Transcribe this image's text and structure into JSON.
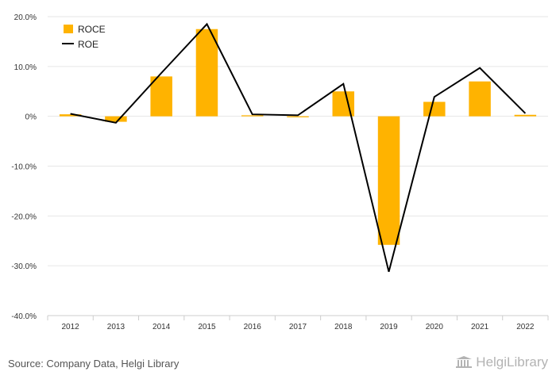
{
  "chart_data": {
    "type": "bar",
    "categories": [
      "2012",
      "2013",
      "2014",
      "2015",
      "2016",
      "2017",
      "2018",
      "2019",
      "2020",
      "2021",
      "2022"
    ],
    "series": [
      {
        "name": "ROCE",
        "kind": "bar",
        "color": "#FFB300",
        "values": [
          0.4,
          -1.1,
          8.0,
          17.5,
          0.2,
          -0.2,
          5.0,
          -25.8,
          2.9,
          7.0,
          0.3
        ]
      },
      {
        "name": "ROE",
        "kind": "line",
        "color": "#000000",
        "values": [
          0.5,
          -1.3,
          8.7,
          18.5,
          0.4,
          0.2,
          6.5,
          -31.2,
          3.9,
          9.7,
          0.6
        ]
      }
    ],
    "ylim": [
      -40,
      20
    ],
    "yticks": [
      20,
      10,
      0,
      -10,
      -20,
      -30,
      -40
    ],
    "ytick_labels": [
      "20.0%",
      "10.0%",
      "0%",
      "-10.0%",
      "-20.0%",
      "-30.0%",
      "-40.0%"
    ],
    "grid": true,
    "legend": "top-left"
  },
  "footer": {
    "source": "Source: Company Data, Helgi Library",
    "logo_text": "HelgiLibrary"
  }
}
